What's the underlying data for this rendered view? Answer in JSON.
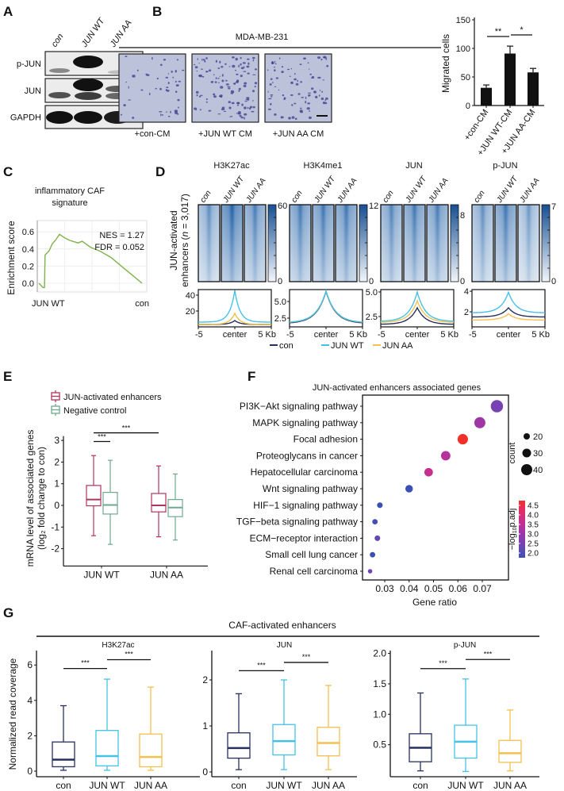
{
  "panel_labels": [
    "A",
    "B",
    "C",
    "D",
    "E",
    "F",
    "G"
  ],
  "panel_a": {
    "lanes": [
      "con",
      "JUN WT",
      "JUN AA"
    ],
    "rows": [
      "p-JUN",
      "JUN",
      "GAPDH"
    ]
  },
  "panel_b": {
    "title": "MDA-MB-231",
    "images": [
      "+con-CM",
      "+JUN WT CM",
      "+JUN AA CM"
    ]
  },
  "colors": {
    "con": "#27305e",
    "jun_wt": "#45c1e8",
    "jun_aa": "#f2c14e",
    "jun_activated": "#b0345c",
    "negative_control": "#6fa88f",
    "gsea_line": "#7fb24a",
    "heatmap": "#1f5fa6"
  },
  "chart_data": [
    {
      "panel": "B",
      "type": "bar",
      "categories": [
        "+con-CM",
        "+JUN WT-CM",
        "+JUN AA-CM"
      ],
      "values": [
        31,
        91,
        58
      ],
      "errors": [
        5,
        13,
        7
      ],
      "ylabel": "Migrated cells",
      "ylim": [
        0,
        150
      ],
      "yticks": [
        "0",
        "50",
        "100",
        "150"
      ],
      "significance": [
        {
          "from": 0,
          "to": 1,
          "label": "**"
        },
        {
          "from": 1,
          "to": 2,
          "label": "*"
        }
      ]
    },
    {
      "panel": "C",
      "type": "line",
      "title_lines": [
        "inflammatory CAF",
        "signature"
      ],
      "ylabel": "Enrichment score",
      "x_end_labels": [
        "JUN WT",
        "con"
      ],
      "yticks": [
        "0.0",
        "0.2",
        "0.4",
        "0.6"
      ],
      "ylim": [
        -0.1,
        0.7
      ],
      "annotations": [
        "NES = 1.27",
        "FDR = 0.052"
      ],
      "rank_fraction": [
        0,
        0.04,
        0.055,
        0.06,
        0.1,
        0.13,
        0.16,
        0.2,
        0.25,
        0.3,
        0.38,
        0.42,
        0.5,
        0.6,
        0.7,
        0.8,
        0.9,
        1.0
      ],
      "enrichment_score": [
        0.0,
        -0.05,
        -0.05,
        0.33,
        0.38,
        0.46,
        0.5,
        0.57,
        0.53,
        0.5,
        0.47,
        0.49,
        0.42,
        0.37,
        0.3,
        0.2,
        0.1,
        0.0
      ]
    },
    {
      "panel": "D",
      "type": "heatmap",
      "ylabel_line1": "JUN-activated",
      "ylabel_line2_prefix": "enhancers (",
      "ylabel_n": "n",
      "ylabel_line2_suffix": " = 3,017)",
      "columns": [
        "con",
        "JUN WT",
        "JUN AA"
      ],
      "marks": [
        {
          "name": "H3K27ac",
          "colorbar_max": "60",
          "colorbar_min": "0",
          "relative_intensity": [
            0.3,
            0.95,
            0.55
          ]
        },
        {
          "name": "H3K4me1",
          "colorbar_max": "12",
          "colorbar_min": "0",
          "relative_intensity": [
            0.6,
            0.65,
            0.65
          ]
        },
        {
          "name": "JUN",
          "colorbar_max": "8",
          "colorbar_min": "0",
          "relative_intensity": [
            0.45,
            0.62,
            0.55
          ]
        },
        {
          "name": "p-JUN",
          "colorbar_max": "7",
          "colorbar_min": "0",
          "relative_intensity": [
            0.3,
            0.65,
            0.12
          ]
        }
      ]
    },
    {
      "panel": "D",
      "type": "line",
      "xticks": [
        "-5",
        "center",
        "5 Kb"
      ],
      "legend": [
        "con",
        "JUN WT",
        "JUN AA"
      ],
      "profiles": [
        {
          "mark": "H3K27ac",
          "yticks": [
            {
              "v": 20,
              "label": "20"
            },
            {
              "v": 40,
              "label": "40"
            }
          ],
          "ylim": [
            0,
            47
          ],
          "width": 0.7,
          "series": [
            {
              "flank": 3,
              "peak": 8
            },
            {
              "flank": 6,
              "peak": 46
            },
            {
              "flank": 3,
              "peak": 17
            }
          ]
        },
        {
          "mark": "H3K4me1",
          "yticks": [
            {
              "v": 2.5,
              "label": "2.5"
            },
            {
              "v": 5.0,
              "label": "5.0"
            }
          ],
          "ylim": [
            1.19,
            6.79
          ],
          "width": 1.3,
          "series": [
            {
              "flank": 1.7,
              "peak": 6.5
            },
            {
              "flank": 1.8,
              "peak": 6.6
            },
            {
              "flank": 1.8,
              "peak": 6.55
            }
          ]
        },
        {
          "mark": "JUN",
          "yticks": [
            {
              "v": 2.5,
              "label": "2.5"
            },
            {
              "v": 5.0,
              "label": "5.0"
            }
          ],
          "ylim": [
            1.45,
            5.24
          ],
          "width": 1.1,
          "series": [
            {
              "flank": 1.7,
              "peak": 3.4
            },
            {
              "flank": 2.0,
              "peak": 5.0
            },
            {
              "flank": 1.9,
              "peak": 4.1
            }
          ]
        },
        {
          "mark": "p-JUN",
          "yticks": [
            {
              "v": 2,
              "label": "2"
            },
            {
              "v": 4,
              "label": "4"
            }
          ],
          "ylim": [
            0.54,
            4.16
          ],
          "width": 1.0,
          "series": [
            {
              "flank": 1.5,
              "peak": 2.4
            },
            {
              "flank": 1.9,
              "peak": 3.9
            },
            {
              "flank": 1.2,
              "peak": 1.8
            }
          ]
        }
      ]
    },
    {
      "panel": "E",
      "type": "box",
      "legend": [
        "JUN-activated enhancers",
        "Negative control"
      ],
      "ylabel_line1": "mRNA level of associated genes",
      "ylabel_line2": "(log₂ fold change to con)",
      "categories": [
        "JUN WT",
        "JUN AA"
      ],
      "yticks": [
        "-2",
        "-1",
        "0",
        "1",
        "2",
        "3"
      ],
      "ylim": [
        -2.8,
        3.2
      ],
      "boxes": [
        {
          "group": "JUN WT",
          "series": "JUN-activated enhancers",
          "min": -1.4,
          "q1": -0.02,
          "median": 0.27,
          "q3": 0.92,
          "max": 2.3
        },
        {
          "group": "JUN WT",
          "series": "Negative control",
          "min": -1.8,
          "q1": -0.4,
          "median": 0.02,
          "q3": 0.6,
          "max": 2.08
        },
        {
          "group": "JUN AA",
          "series": "JUN-activated enhancers",
          "min": -1.45,
          "q1": -0.3,
          "median": 0.0,
          "q3": 0.55,
          "max": 1.82
        },
        {
          "group": "JUN AA",
          "series": "Negative control",
          "min": -1.6,
          "q1": -0.52,
          "median": -0.1,
          "q3": 0.27,
          "max": 1.45
        }
      ],
      "significance": [
        {
          "from": 0,
          "to": 1,
          "label": "***",
          "y": 2.95
        },
        {
          "from": 0,
          "to": 2,
          "label": "***",
          "y": 3.35
        }
      ]
    },
    {
      "panel": "F",
      "type": "scatter",
      "title": "JUN-activated enhancers associated genes",
      "xlabel": "Gene ratio",
      "xticks": [
        "0.03",
        "0.04",
        "0.05",
        "0.06",
        "0.07"
      ],
      "size_legend_title": "count",
      "size_legend": [
        "20",
        "30",
        "40"
      ],
      "color_legend_title": "−log",
      "color_legend_sub": "10",
      "color_legend_tail": "p.adj",
      "color_legend": [
        "4.5",
        "4.0",
        "3.5",
        "3.0",
        "2.5",
        "2.0"
      ],
      "terms": [
        {
          "term": "PI3K−Akt signaling pathway",
          "gene_ratio": 0.076,
          "count": 45,
          "neg_log10_padj": 2.6
        },
        {
          "term": "MAPK signaling pathway",
          "gene_ratio": 0.069,
          "count": 40,
          "neg_log10_padj": 3.1
        },
        {
          "term": "Focal adhesion",
          "gene_ratio": 0.062,
          "count": 37,
          "neg_log10_padj": 4.5
        },
        {
          "term": "Proteoglycans in cancer",
          "gene_ratio": 0.055,
          "count": 33,
          "neg_log10_padj": 3.4
        },
        {
          "term": "Hepatocellular carcinoma",
          "gene_ratio": 0.048,
          "count": 29,
          "neg_log10_padj": 3.6
        },
        {
          "term": "Wnt signaling pathway",
          "gene_ratio": 0.04,
          "count": 25,
          "neg_log10_padj": 2.0
        },
        {
          "term": "HIF−1 signaling pathway",
          "gene_ratio": 0.028,
          "count": 17,
          "neg_log10_padj": 1.9
        },
        {
          "term": "TGF−beta signaling pathway",
          "gene_ratio": 0.026,
          "count": 16,
          "neg_log10_padj": 2.1
        },
        {
          "term": "ECM−receptor interaction",
          "gene_ratio": 0.027,
          "count": 17,
          "neg_log10_padj": 2.4
        },
        {
          "term": "Small cell lung cancer",
          "gene_ratio": 0.025,
          "count": 16,
          "neg_log10_padj": 2.0
        },
        {
          "term": "Renal cell carcinoma",
          "gene_ratio": 0.024,
          "count": 12,
          "neg_log10_padj": 2.5
        }
      ]
    },
    {
      "panel": "G",
      "type": "box",
      "title": "CAF-activated enhancers",
      "ylabel": "Normalized read coverage",
      "categories": [
        "con",
        "JUN WT",
        "JUN AA"
      ],
      "panels": [
        {
          "name": "H3K27ac",
          "yticks": [
            {
              "v": 0,
              "label": "0"
            },
            {
              "v": 2,
              "label": "2"
            },
            {
              "v": 4,
              "label": "4"
            },
            {
              "v": 6,
              "label": "6"
            }
          ],
          "boxes": [
            {
              "min": 0.05,
              "q1": 0.25,
              "median": 0.65,
              "q3": 1.65,
              "max": 3.7
            },
            {
              "min": 0.05,
              "q1": 0.3,
              "median": 0.85,
              "q3": 2.3,
              "max": 5.2
            },
            {
              "min": 0.05,
              "q1": 0.25,
              "median": 0.8,
              "q3": 2.1,
              "max": 4.75
            }
          ],
          "significance": [
            {
              "from": 0,
              "to": 1,
              "label": "***",
              "y": 5.8
            },
            {
              "from": 1,
              "to": 2,
              "label": "***",
              "y": 6.3
            }
          ]
        },
        {
          "name": "JUN",
          "yticks": [
            {
              "v": 0,
              "label": "0"
            },
            {
              "v": 1,
              "label": "1"
            },
            {
              "v": 2,
              "label": "2"
            }
          ],
          "boxes": [
            {
              "min": 0.05,
              "q1": 0.3,
              "median": 0.52,
              "q3": 0.85,
              "max": 1.7
            },
            {
              "min": 0.05,
              "q1": 0.37,
              "median": 0.67,
              "q3": 1.03,
              "max": 2.0
            },
            {
              "min": 0.05,
              "q1": 0.35,
              "median": 0.63,
              "q3": 0.97,
              "max": 1.88
            }
          ],
          "significance": [
            {
              "from": 0,
              "to": 1,
              "label": "***",
              "y": 2.2
            },
            {
              "from": 1,
              "to": 2,
              "label": "***",
              "y": 2.38
            }
          ]
        },
        {
          "name": "p-JUN",
          "yticks": [
            {
              "v": 0.5,
              "label": "0.5"
            },
            {
              "v": 1.0,
              "label": "1.0"
            },
            {
              "v": 1.5,
              "label": "1.5"
            },
            {
              "v": 2.0,
              "label": "2.0"
            }
          ],
          "boxes": [
            {
              "min": 0.07,
              "q1": 0.22,
              "median": 0.45,
              "q3": 0.68,
              "max": 1.35
            },
            {
              "min": 0.06,
              "q1": 0.28,
              "median": 0.55,
              "q3": 0.82,
              "max": 1.58
            },
            {
              "min": 0.07,
              "q1": 0.21,
              "median": 0.36,
              "q3": 0.57,
              "max": 1.07
            }
          ],
          "significance": [
            {
              "from": 0,
              "to": 1,
              "label": "***",
              "y": 1.75
            },
            {
              "from": 1,
              "to": 2,
              "label": "***",
              "y": 1.9
            }
          ]
        }
      ]
    }
  ]
}
